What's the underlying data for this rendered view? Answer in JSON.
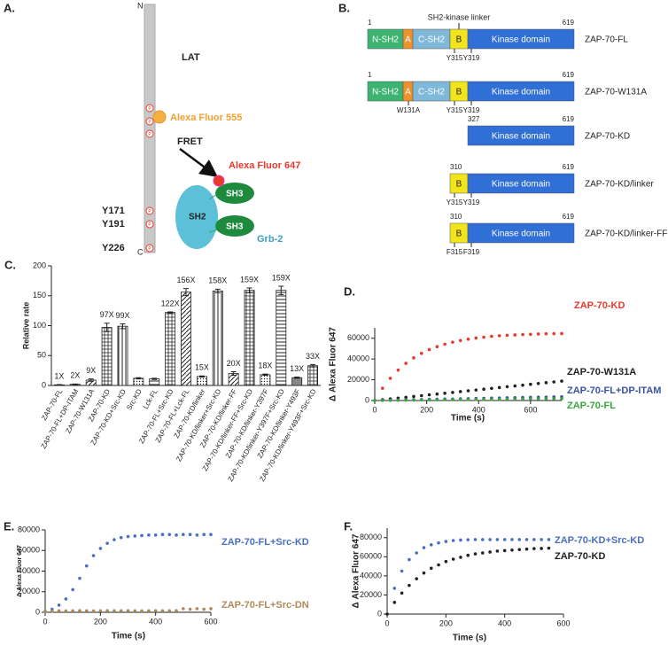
{
  "panel_a": {
    "label": "A.",
    "n_term": "N",
    "c_term": "C",
    "lat": "LAT",
    "donor": "Alexa Fluor 555",
    "fret": "FRET",
    "acceptor": "Alexa Fluor 647",
    "sites": [
      "Y171",
      "Y191",
      "Y226"
    ],
    "phospho_symbol": "P",
    "sh2": "SH2",
    "sh3_top": "SH3",
    "sh3_bottom": "SH3",
    "grb2": "Grb-2"
  },
  "panel_b": {
    "label": "B.",
    "linker_label": "SH2-kinase linker",
    "constructs": [
      {
        "name": "ZAP-70-FL",
        "start": 1,
        "end": 619,
        "domains": [
          {
            "name": "N-SH2",
            "color": "#3cb371"
          },
          {
            "name": "A",
            "color": "#f0902a"
          },
          {
            "name": "C-SH2",
            "color": "#7fb8d8"
          },
          {
            "name": "B",
            "color": "#f2e51c"
          },
          {
            "name": "Kinase domain",
            "color": "#2f6fd6"
          }
        ],
        "residues": [
          "Y315",
          "Y319"
        ]
      },
      {
        "name": "ZAP-70-W131A",
        "start": 1,
        "end": 619,
        "domains": [
          {
            "name": "N-SH2",
            "color": "#3cb371"
          },
          {
            "name": "A",
            "color": "#f0902a"
          },
          {
            "name": "C-SH2",
            "color": "#7fb8d8"
          },
          {
            "name": "B",
            "color": "#f2e51c"
          },
          {
            "name": "Kinase domain",
            "color": "#2f6fd6"
          }
        ],
        "residues": [
          "W131A",
          "Y315",
          "Y319"
        ]
      },
      {
        "name": "ZAP-70-KD",
        "start": 327,
        "end": 619,
        "domains": [
          {
            "name": "Kinase domain",
            "color": "#2f6fd6"
          }
        ],
        "residues": []
      },
      {
        "name": "ZAP-70-KD/linker",
        "start": 310,
        "end": 619,
        "domains": [
          {
            "name": "B",
            "color": "#f2e51c"
          },
          {
            "name": "Kinase domain",
            "color": "#2f6fd6"
          }
        ],
        "residues": [
          "Y315",
          "Y319"
        ]
      },
      {
        "name": "ZAP-70-KD/linker-FF",
        "start": 310,
        "end": 619,
        "domains": [
          {
            "name": "B",
            "color": "#f2e51c"
          },
          {
            "name": "Kinase domain",
            "color": "#2f6fd6"
          }
        ],
        "residues": [
          "F315",
          "F319"
        ]
      }
    ]
  },
  "chart_data": [
    {
      "type": "bar",
      "label": "C.",
      "y_label": "Relative rate",
      "categories": [
        "ZAP-70-FL",
        "ZAP-70-FL+DP-ITAM",
        "ZAP-70-W131A",
        "ZAP-70-KD",
        "ZAP-70-KD+Src-KD",
        "Src-KD",
        "Lck-FL",
        "ZAP-70-FL+Src-KD",
        "ZAP-70-FL+Lck-FL",
        "ZAP-70-KD/linker",
        "ZAP-70-KD/linker+Src-KD",
        "ZAP-70-KD/linker-FF",
        "ZAP-70-KD/linker-FF+Src-KD",
        "ZAP-70-KD/linker-Y397F",
        "ZAP-70-KD/linker-Y397F+Src-KD",
        "ZAP-70-KD/linker-Y493F",
        "ZAP-70-KD/linker-Y493F+Src-KD"
      ],
      "values": [
        1,
        2,
        9,
        97,
        99,
        12,
        11,
        122,
        156,
        15,
        158,
        20,
        159,
        18,
        159,
        13,
        33
      ],
      "errors": [
        0.5,
        0.5,
        2,
        7,
        4,
        1,
        1,
        1,
        6,
        1,
        3,
        3,
        4,
        1,
        7,
        1,
        2
      ],
      "value_labels": [
        "1X",
        "2X",
        "9X",
        "97X",
        "99X",
        null,
        null,
        "122X",
        "156X",
        "15X",
        "158X",
        "20X",
        "159X",
        "18X",
        "159X",
        "13X",
        "33X"
      ],
      "ylim": [
        0,
        200
      ],
      "yticks": [
        0,
        50,
        100,
        150,
        200
      ]
    },
    {
      "type": "scatter",
      "label": "D.",
      "y_label": "Δ Alexa Fluor 647",
      "x_label": "Time (s)",
      "x": [
        0,
        30,
        60,
        90,
        120,
        150,
        180,
        210,
        240,
        270,
        300,
        330,
        360,
        390,
        420,
        450,
        480,
        510,
        540,
        570,
        600,
        630,
        660,
        690,
        720
      ],
      "series": [
        {
          "name": "ZAP-70-KD",
          "color": "#e8392b",
          "values": [
            0,
            11800,
            21400,
            29300,
            35800,
            41100,
            45400,
            49000,
            51900,
            54300,
            56200,
            57800,
            59100,
            60200,
            61000,
            61800,
            62400,
            62800,
            63200,
            63600,
            63800,
            64100,
            64300,
            64400,
            64500
          ]
        },
        {
          "name": "ZAP-70-W131A",
          "color": "#222222",
          "values": [
            0,
            800,
            1600,
            2300,
            3100,
            3900,
            4700,
            5500,
            6200,
            7000,
            7800,
            8600,
            9400,
            10100,
            10900,
            11700,
            12500,
            13300,
            14000,
            14800,
            15600,
            16400,
            17200,
            17900,
            18700
          ]
        },
        {
          "name": "ZAP-70-FL+DP-ITAM",
          "color": "#3b53a4",
          "values": [
            0,
            200,
            300,
            500,
            600,
            800,
            900,
            1100,
            1200,
            1400,
            1500,
            1700,
            1800,
            2000,
            2100,
            2300,
            2400,
            2600,
            2700,
            2900,
            3000,
            3200,
            3300,
            3500,
            3600
          ]
        },
        {
          "name": "ZAP-70-FL",
          "color": "#3aa63a",
          "values": [
            0,
            100,
            200,
            200,
            300,
            400,
            500,
            500,
            600,
            700,
            800,
            800,
            900,
            1000,
            1100,
            1100,
            1200,
            1300,
            1400,
            1400,
            1500,
            1600,
            1700,
            1700,
            1800
          ]
        }
      ],
      "xlim": [
        0,
        720
      ],
      "xticks": [
        0,
        200,
        400,
        600
      ],
      "ylim": [
        0,
        70000
      ],
      "yticks": [
        0,
        20000,
        40000,
        60000
      ]
    },
    {
      "type": "scatter",
      "label": "E.",
      "y_label": "Δ Alexa Fluor 647",
      "x_label": "Time (s)",
      "x": [
        0,
        25,
        50,
        75,
        100,
        125,
        150,
        175,
        200,
        225,
        250,
        275,
        300,
        325,
        350,
        375,
        400,
        425,
        450,
        475,
        500,
        525,
        550,
        575,
        600
      ],
      "series": [
        {
          "name": "ZAP-70-FL+Src-KD",
          "color": "#4a6fc0",
          "values": [
            1000,
            3000,
            7000,
            13000,
            22000,
            33000,
            45000,
            55000,
            62000,
            67000,
            70500,
            72500,
            73500,
            74000,
            74500,
            75000,
            75000,
            75500,
            75500,
            75000,
            75500,
            75500,
            75000,
            75500,
            75500
          ]
        },
        {
          "name": "ZAP-70-FL+Src-DN",
          "color": "#b08a5a",
          "values": [
            1000,
            1200,
            1500,
            1400,
            1500,
            1600,
            1500,
            1400,
            1500,
            1600,
            1500,
            1500,
            1600,
            1500,
            1400,
            1500,
            1600,
            1500,
            1500,
            1600,
            3500,
            3000,
            3500,
            3000,
            3500
          ]
        }
      ],
      "xlim": [
        0,
        600
      ],
      "xticks": [
        0,
        200,
        400,
        600
      ],
      "ylim": [
        0,
        80000
      ],
      "yticks": [
        0,
        20000,
        40000,
        60000,
        80000
      ]
    },
    {
      "type": "scatter",
      "label": "F.",
      "y_label": "Δ Alexa Fluor 647",
      "x_label": "Time (s)",
      "x": [
        0,
        25,
        50,
        75,
        100,
        125,
        150,
        175,
        200,
        225,
        250,
        275,
        300,
        325,
        350,
        375,
        400,
        425,
        450,
        475,
        500,
        525,
        550
      ],
      "series": [
        {
          "name": "ZAP-70-KD+Src-KD",
          "color": "#4a6fc0",
          "values": [
            0,
            27000,
            45000,
            57000,
            64000,
            69500,
            72500,
            74500,
            76000,
            77000,
            77500,
            77800,
            78000,
            78000,
            78000,
            78000,
            78000,
            78000,
            78000,
            78000,
            78000,
            78000,
            78000
          ]
        },
        {
          "name": "ZAP-70-KD",
          "color": "#222222",
          "values": [
            0,
            12200,
            22000,
            30000,
            37000,
            43000,
            48000,
            51500,
            55000,
            57500,
            59500,
            61500,
            63000,
            64000,
            65000,
            66000,
            66500,
            67000,
            67500,
            68000,
            68500,
            68700,
            69000
          ]
        }
      ],
      "xlim": [
        0,
        600
      ],
      "xticks": [
        0,
        200,
        400,
        600
      ],
      "ylim": [
        0,
        90000
      ],
      "yticks": [
        0,
        20000,
        40000,
        60000,
        80000
      ]
    }
  ]
}
